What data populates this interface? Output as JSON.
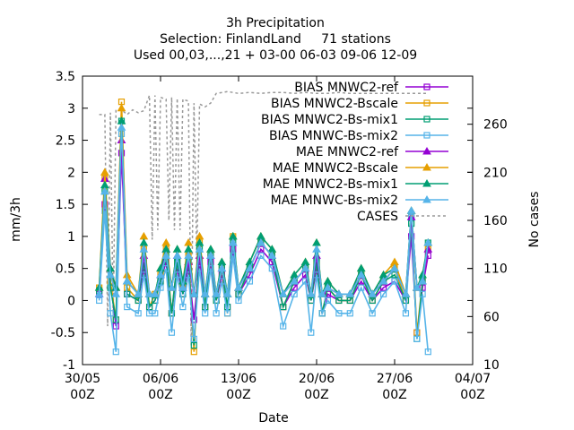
{
  "chart_data": {
    "type": "line",
    "title_lines": [
      "3h Precipitation",
      "Selection: FinlandLand     71 stations",
      "Used 00,03,...,21 + 03-00 06-03 09-06 12-09"
    ],
    "xlabel": "Date",
    "ylabel": "mm/3h",
    "y2label": "No cases",
    "x_ticks": [
      {
        "line1": "30/05",
        "line2": "00Z",
        "day": 0
      },
      {
        "line1": "06/06",
        "line2": "00Z",
        "day": 7
      },
      {
        "line1": "13/06",
        "line2": "00Z",
        "day": 14
      },
      {
        "line1": "20/06",
        "line2": "00Z",
        "day": 21
      },
      {
        "line1": "27/06",
        "line2": "00Z",
        "day": 28
      },
      {
        "line1": "04/07",
        "line2": "00Z",
        "day": 35
      }
    ],
    "xlim": [
      0,
      35
    ],
    "ylim": [
      -1,
      3.5
    ],
    "y_ticks": [
      "-1",
      "-0.5",
      "0",
      "0.5",
      "1",
      "1.5",
      "2",
      "2.5",
      "3",
      "3.5"
    ],
    "y2lim": [
      10,
      310
    ],
    "y2_ticks": [
      "10",
      "60",
      "110",
      "160",
      "210",
      "260"
    ],
    "legend_position": "top-right",
    "series": [
      {
        "name": "BIAS MNWC2-ref",
        "color": "#9400d3",
        "marker": "square",
        "x": [
          1.5,
          2,
          2.5,
          3,
          3.5,
          4,
          5,
          5.5,
          6,
          6.5,
          7,
          7.5,
          8,
          8.5,
          9,
          9.5,
          10,
          10.5,
          11,
          11.5,
          12,
          12.5,
          13,
          13.5,
          14,
          15,
          16,
          17,
          18,
          19,
          20,
          20.5,
          21,
          21.5,
          22,
          23,
          24,
          25,
          26,
          27,
          28,
          29,
          29.5,
          30,
          30.5,
          31
        ],
        "y": [
          0.1,
          1.5,
          0.3,
          -0.4,
          2.3,
          0.1,
          0.0,
          0.5,
          -0.1,
          0.0,
          0.3,
          0.6,
          -0.2,
          0.5,
          0.1,
          0.5,
          -0.3,
          0.6,
          -0.1,
          0.6,
          0.0,
          0.4,
          -0.1,
          0.8,
          0.1,
          0.4,
          0.8,
          0.6,
          -0.1,
          0.2,
          0.4,
          0.0,
          0.5,
          -0.2,
          0.1,
          0.0,
          0.0,
          0.3,
          0.0,
          0.2,
          0.3,
          0.0,
          1.0,
          -0.5,
          0.2,
          0.7
        ]
      },
      {
        "name": "BIAS MNWC2-Bscale",
        "color": "#e69f00",
        "marker": "square",
        "x": [
          1.5,
          2,
          2.5,
          3,
          3.5,
          4,
          5,
          5.5,
          6,
          6.5,
          7,
          7.5,
          8,
          8.5,
          9,
          9.5,
          10,
          10.5,
          11,
          11.5,
          12,
          12.5,
          13,
          13.5,
          14,
          15,
          16,
          17,
          18,
          19,
          20,
          20.5,
          21,
          21.5,
          22,
          23,
          24,
          25,
          26,
          27,
          28,
          29,
          29.5,
          30,
          30.5,
          31
        ],
        "y": [
          0.2,
          1.9,
          0.3,
          -0.3,
          3.1,
          0.2,
          0.0,
          0.8,
          -0.1,
          0.1,
          0.4,
          0.8,
          -0.2,
          0.6,
          0.2,
          0.7,
          -0.8,
          0.9,
          -0.1,
          0.7,
          0.0,
          0.5,
          -0.2,
          1.0,
          0.1,
          0.5,
          0.9,
          0.7,
          -0.1,
          0.3,
          0.5,
          0.0,
          0.6,
          -0.2,
          0.2,
          0.0,
          0.0,
          0.4,
          0.0,
          0.3,
          0.5,
          0.0,
          1.3,
          -0.5,
          0.3,
          0.8
        ]
      },
      {
        "name": "BIAS MNWC2-Bs-mix1",
        "color": "#009e73",
        "marker": "square",
        "x": [
          1.5,
          2,
          2.5,
          3,
          3.5,
          4,
          5,
          5.5,
          6,
          6.5,
          7,
          7.5,
          8,
          8.5,
          9,
          9.5,
          10,
          10.5,
          11,
          11.5,
          12,
          12.5,
          13,
          13.5,
          14,
          15,
          16,
          17,
          18,
          19,
          20,
          20.5,
          21,
          21.5,
          22,
          23,
          24,
          25,
          26,
          27,
          28,
          29,
          29.5,
          30,
          30.5,
          31
        ],
        "y": [
          0.15,
          1.7,
          0.2,
          -0.3,
          2.8,
          0.1,
          0.0,
          0.6,
          -0.1,
          0.0,
          0.3,
          0.7,
          -0.2,
          0.6,
          0.1,
          0.6,
          -0.7,
          0.8,
          -0.1,
          0.7,
          0.0,
          0.5,
          -0.1,
          0.9,
          0.1,
          0.5,
          0.9,
          0.7,
          -0.1,
          0.3,
          0.5,
          0.0,
          0.6,
          -0.2,
          0.2,
          0.0,
          0.0,
          0.4,
          0.0,
          0.3,
          0.4,
          0.0,
          1.2,
          -0.6,
          0.3,
          0.9
        ]
      },
      {
        "name": "BIAS MNWC-Bs-mix2",
        "color": "#56b4e9",
        "marker": "square",
        "x": [
          1.5,
          2,
          2.5,
          3,
          3.5,
          4,
          5,
          5.5,
          6,
          6.5,
          7,
          7.5,
          8,
          8.5,
          9,
          9.5,
          10,
          10.5,
          11,
          11.5,
          12,
          12.5,
          13,
          13.5,
          14,
          15,
          16,
          17,
          18,
          19,
          20,
          20.5,
          21,
          21.5,
          22,
          23,
          24,
          25,
          26,
          27,
          28,
          29,
          29.5,
          30,
          30.5,
          31
        ],
        "y": [
          0.0,
          1.4,
          -0.2,
          -0.8,
          2.6,
          -0.1,
          -0.2,
          0.4,
          -0.2,
          -0.2,
          0.2,
          0.5,
          -0.5,
          0.4,
          -0.1,
          0.4,
          -0.6,
          0.5,
          -0.2,
          0.5,
          -0.2,
          0.3,
          -0.2,
          0.7,
          0.0,
          0.3,
          0.7,
          0.5,
          -0.4,
          0.1,
          0.3,
          -0.5,
          0.4,
          -0.2,
          0.0,
          -0.2,
          -0.2,
          0.2,
          -0.2,
          0.1,
          0.3,
          -0.2,
          1.3,
          -0.6,
          0.1,
          -0.8
        ]
      },
      {
        "name": "MAE MNWC2-ref",
        "color": "#9400d3",
        "marker": "triangle",
        "x": [
          1.5,
          2,
          2.5,
          3,
          3.5,
          4,
          5,
          5.5,
          6,
          6.5,
          7,
          7.5,
          8,
          8.5,
          9,
          9.5,
          10,
          10.5,
          11,
          11.5,
          12,
          12.5,
          13,
          13.5,
          14,
          15,
          16,
          17,
          18,
          19,
          20,
          20.5,
          21,
          21.5,
          22,
          23,
          24,
          25,
          26,
          27,
          28,
          29,
          29.5,
          30,
          30.5,
          31
        ],
        "y": [
          0.1,
          1.9,
          0.5,
          0.2,
          2.5,
          0.3,
          0.1,
          0.7,
          0.1,
          0.1,
          0.4,
          0.8,
          0.2,
          0.7,
          0.2,
          0.6,
          0.1,
          0.7,
          0.1,
          0.7,
          0.1,
          0.5,
          0.1,
          0.9,
          0.2,
          0.5,
          0.9,
          0.7,
          0.1,
          0.3,
          0.5,
          0.1,
          0.7,
          0.1,
          0.2,
          0.1,
          0.1,
          0.4,
          0.1,
          0.3,
          0.5,
          0.1,
          1.3,
          0.2,
          0.3,
          0.8
        ]
      },
      {
        "name": "MAE MNWC2-Bscale",
        "color": "#e69f00",
        "marker": "triangle",
        "x": [
          1.5,
          2,
          2.5,
          3,
          3.5,
          4,
          5,
          5.5,
          6,
          6.5,
          7,
          7.5,
          8,
          8.5,
          9,
          9.5,
          10,
          10.5,
          11,
          11.5,
          12,
          12.5,
          13,
          13.5,
          14,
          15,
          16,
          17,
          18,
          19,
          20,
          20.5,
          21,
          21.5,
          22,
          23,
          24,
          25,
          26,
          27,
          28,
          29,
          29.5,
          30,
          30.5,
          31
        ],
        "y": [
          0.2,
          2.0,
          0.5,
          0.2,
          3.0,
          0.4,
          0.1,
          1.0,
          0.1,
          0.1,
          0.5,
          0.9,
          0.2,
          0.8,
          0.3,
          0.9,
          0.1,
          1.0,
          0.1,
          0.8,
          0.1,
          0.6,
          0.1,
          1.0,
          0.2,
          0.6,
          1.0,
          0.8,
          0.1,
          0.4,
          0.6,
          0.1,
          0.9,
          0.1,
          0.3,
          0.1,
          0.1,
          0.5,
          0.1,
          0.4,
          0.6,
          0.1,
          1.4,
          0.2,
          0.4,
          0.9
        ]
      },
      {
        "name": "MAE MNWC2-Bs-mix1",
        "color": "#009e73",
        "marker": "triangle",
        "x": [
          1.5,
          2,
          2.5,
          3,
          3.5,
          4,
          5,
          5.5,
          6,
          6.5,
          7,
          7.5,
          8,
          8.5,
          9,
          9.5,
          10,
          10.5,
          11,
          11.5,
          12,
          12.5,
          13,
          13.5,
          14,
          15,
          16,
          17,
          18,
          19,
          20,
          20.5,
          21,
          21.5,
          22,
          23,
          24,
          25,
          26,
          27,
          28,
          29,
          29.5,
          30,
          30.5,
          31
        ],
        "y": [
          0.2,
          1.8,
          0.5,
          0.2,
          2.8,
          0.3,
          0.1,
          0.9,
          0.1,
          0.1,
          0.5,
          0.8,
          0.2,
          0.8,
          0.3,
          0.8,
          0.1,
          0.9,
          0.1,
          0.8,
          0.1,
          0.6,
          0.1,
          1.0,
          0.2,
          0.6,
          1.0,
          0.8,
          0.1,
          0.4,
          0.6,
          0.1,
          0.9,
          0.1,
          0.3,
          0.1,
          0.1,
          0.5,
          0.1,
          0.4,
          0.5,
          0.1,
          1.4,
          0.2,
          0.4,
          0.9
        ]
      },
      {
        "name": "MAE MNWC-Bs-mix2",
        "color": "#56b4e9",
        "marker": "triangle",
        "x": [
          1.5,
          2,
          2.5,
          3,
          3.5,
          4,
          5,
          5.5,
          6,
          6.5,
          7,
          7.5,
          8,
          8.5,
          9,
          9.5,
          10,
          10.5,
          11,
          11.5,
          12,
          12.5,
          13,
          13.5,
          14,
          15,
          16,
          17,
          18,
          19,
          20,
          20.5,
          21,
          21.5,
          22,
          23,
          24,
          25,
          26,
          27,
          28,
          29,
          29.5,
          30,
          30.5,
          31
        ],
        "y": [
          0.1,
          1.7,
          0.4,
          0.1,
          2.7,
          0.3,
          0.1,
          0.8,
          0.1,
          0.1,
          0.4,
          0.7,
          0.2,
          0.7,
          0.2,
          0.7,
          0.1,
          0.8,
          0.1,
          0.7,
          0.1,
          0.5,
          0.1,
          0.9,
          0.2,
          0.5,
          0.9,
          0.7,
          0.1,
          0.3,
          0.5,
          0.1,
          0.8,
          0.1,
          0.2,
          0.1,
          0.1,
          0.4,
          0.1,
          0.3,
          0.5,
          0.1,
          1.4,
          0.2,
          0.3,
          0.9
        ]
      },
      {
        "name": "CASES",
        "color": "#999999",
        "marker": "none",
        "dashed": true,
        "axis": "y2",
        "x": [
          1.5,
          2,
          2.25,
          2.5,
          2.75,
          3,
          3.5,
          4,
          4.5,
          5,
          5.5,
          6,
          6.25,
          6.5,
          6.75,
          7,
          7.5,
          7.75,
          8,
          8.25,
          8.5,
          8.75,
          9,
          9.5,
          9.75,
          10,
          10.25,
          10.5,
          11,
          11.5,
          12,
          13,
          14,
          15,
          16,
          17,
          18,
          19,
          20,
          21,
          22,
          23,
          24,
          25,
          26,
          27,
          28,
          29,
          30,
          31
        ],
        "y": [
          270,
          270,
          50,
          272,
          60,
          275,
          275,
          270,
          275,
          272,
          274,
          290,
          140,
          290,
          150,
          288,
          286,
          160,
          288,
          150,
          287,
          150,
          286,
          284,
          30,
          282,
          120,
          281,
          278,
          282,
          292,
          294,
          292,
          293,
          292,
          293,
          293,
          292,
          293,
          292,
          292,
          293,
          292,
          292,
          292,
          292,
          292,
          292,
          292,
          292
        ]
      }
    ]
  }
}
